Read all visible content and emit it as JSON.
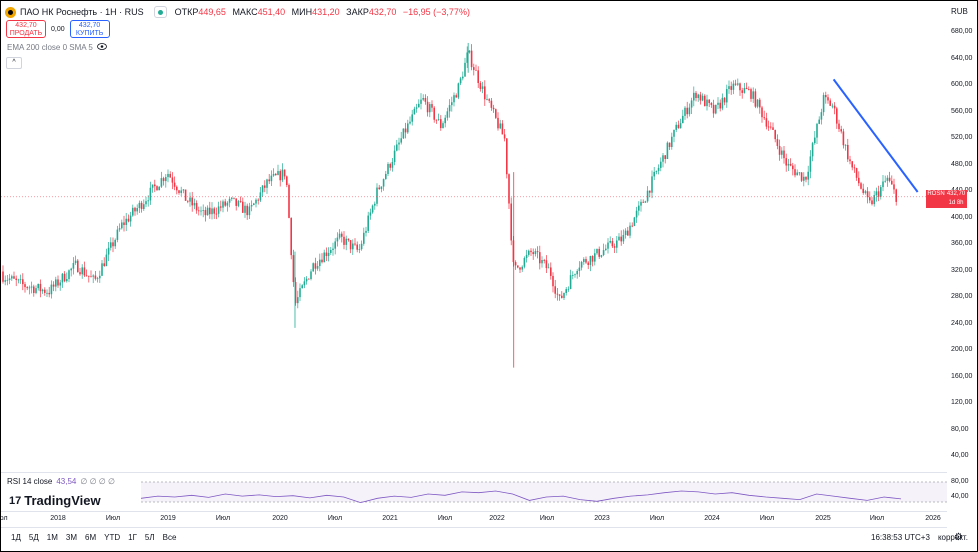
{
  "header": {
    "title": "ПАО НК Роснефть · 1Н · RUS",
    "ohlc": [
      {
        "k": "ОТКР",
        "v": "449,65"
      },
      {
        "k": "МАКС",
        "v": "451,40"
      },
      {
        "k": "МИН",
        "v": "431,20"
      },
      {
        "k": "ЗАКР",
        "v": "432,70"
      },
      {
        "k": "",
        "v": "−16,95 (−3,77%)"
      }
    ],
    "currency": "RUB"
  },
  "trade": {
    "sell_price": "432,70",
    "sell_label": "ПРОДАТЬ",
    "spread": "0,00",
    "buy_price": "432,70",
    "buy_label": "КУПИТЬ"
  },
  "indicator": {
    "ema_label": "EMA 200 close 0 SMA 5",
    "collapse": "^"
  },
  "price_tag": {
    "symbol": "ROSN",
    "price": "432,70",
    "time": "1d 8h"
  },
  "rsi": {
    "label": "RSI 14 close",
    "value": "43,54",
    "zeros": "∅ ∅ ∅ ∅",
    "levels": [
      "80,00",
      "40,00"
    ]
  },
  "brand": {
    "name": "TradingView",
    "mark": "17"
  },
  "ranges": [
    "1Д",
    "5Д",
    "1М",
    "3М",
    "6М",
    "YTD",
    "1Г",
    "5Л",
    "Все"
  ],
  "footer": {
    "time": "16:38:53 UTC+3",
    "mode": "коррект."
  },
  "colors": {
    "up": "#22ab94",
    "down": "#f23645",
    "trend": "#2962ff",
    "rsi": "#7e57c2"
  },
  "chart_data": {
    "type": "candlestick",
    "y_axis_ticks": [
      "680,00",
      "640,00",
      "600,00",
      "560,00",
      "520,00",
      "480,00",
      "440,00",
      "400,00",
      "360,00",
      "320,00",
      "280,00",
      "240,00",
      "200,00",
      "160,00",
      "120,00",
      "80,00",
      "40,00"
    ],
    "x_axis_ticks": [
      "юл",
      "2018",
      "Июл",
      "2019",
      "Июл",
      "2020",
      "Июл",
      "2021",
      "Июл",
      "2022",
      "Июл",
      "2023",
      "Июл",
      "2024",
      "Июл",
      "2025",
      "Июл",
      "2026"
    ],
    "ylim": [
      0,
      700
    ],
    "trend_line": {
      "from": [
        "2025-01",
        610
      ],
      "to": [
        "2025-10",
        440
      ]
    },
    "last_price": 432.7,
    "series": [
      {
        "name": "",
        "values": [
          [
            "2017-06",
            320
          ],
          [
            "2017-09",
            300
          ],
          [
            "2017-12",
            290
          ],
          [
            "2018-03",
            330
          ],
          [
            "2018-05",
            305
          ],
          [
            "2018-08",
            390
          ],
          [
            "2018-10",
            420
          ],
          [
            "2019-01",
            470
          ],
          [
            "2019-03",
            430
          ],
          [
            "2019-05",
            405
          ],
          [
            "2019-08",
            425
          ],
          [
            "2019-10",
            410
          ],
          [
            "2019-12",
            455
          ],
          [
            "2020-02",
            470
          ],
          [
            "2020-03",
            270
          ],
          [
            "2020-05",
            330
          ],
          [
            "2020-08",
            370
          ],
          [
            "2020-10",
            350
          ],
          [
            "2020-12",
            440
          ],
          [
            "2021-03",
            530
          ],
          [
            "2021-05",
            580
          ],
          [
            "2021-07",
            540
          ],
          [
            "2021-09",
            600
          ],
          [
            "2021-10",
            650
          ],
          [
            "2021-12",
            580
          ],
          [
            "2022-02",
            520
          ],
          [
            "2022-03",
            320
          ],
          [
            "2022-05",
            350
          ],
          [
            "2022-07",
            320
          ],
          [
            "2022-08",
            275
          ],
          [
            "2022-10",
            330
          ],
          [
            "2022-12",
            345
          ],
          [
            "2023-03",
            370
          ],
          [
            "2023-05",
            420
          ],
          [
            "2023-07",
            480
          ],
          [
            "2023-09",
            540
          ],
          [
            "2023-11",
            590
          ],
          [
            "2024-01",
            560
          ],
          [
            "2024-03",
            600
          ],
          [
            "2024-05",
            590
          ],
          [
            "2024-07",
            540
          ],
          [
            "2024-09",
            480
          ],
          [
            "2024-11",
            460
          ],
          [
            "2025-01",
            580
          ],
          [
            "2025-02",
            570
          ],
          [
            "2025-04",
            480
          ],
          [
            "2025-06",
            420
          ],
          [
            "2025-08",
            460
          ],
          [
            "2025-09",
            432.7
          ]
        ]
      }
    ],
    "rsi_series": [
      45,
      50,
      48,
      52,
      47,
      55,
      50,
      53,
      49,
      51,
      46,
      52,
      48,
      35,
      45,
      50,
      47,
      55,
      52,
      60,
      58,
      62,
      55,
      40,
      48,
      50,
      42,
      38,
      45,
      50,
      53,
      58,
      62,
      60,
      55,
      58,
      52,
      48,
      45,
      42,
      55,
      50,
      45,
      40,
      48,
      43.5
    ]
  }
}
